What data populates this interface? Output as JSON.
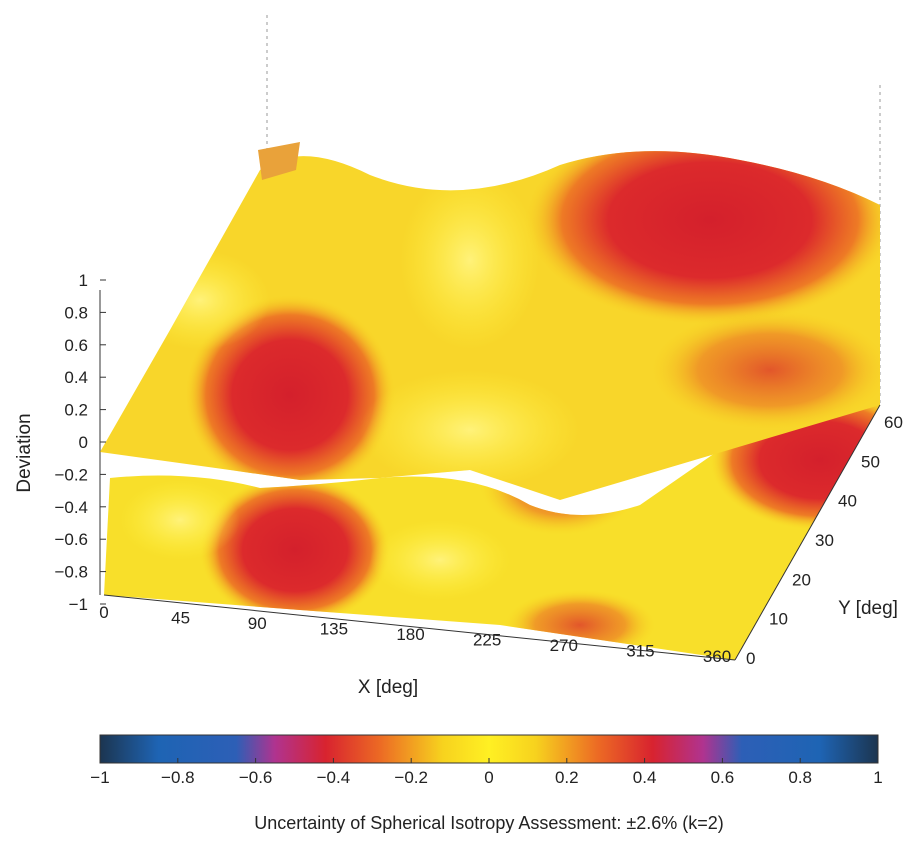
{
  "chart_data": {
    "type": "surface",
    "title": "",
    "xlabel": "X [deg]",
    "ylabel": "Y [deg]",
    "zlabel": "Deviation",
    "xlim": [
      0,
      360
    ],
    "ylim": [
      0,
      60
    ],
    "zlim": [
      -1,
      1
    ],
    "x_ticks": [
      "0",
      "45",
      "90",
      "135",
      "180",
      "225",
      "270",
      "315",
      "360"
    ],
    "y_ticks": [
      "0",
      "10",
      "20",
      "30",
      "40",
      "50",
      "60"
    ],
    "z_ticks": [
      "-1",
      "-0.8",
      "-0.6",
      "-0.4",
      "-0.2",
      "0",
      "0.2",
      "0.4",
      "0.6",
      "0.8",
      "1"
    ],
    "surface_note": "Two overlapping surface sheets, values shown by color: red lobes (|deviation| about 0.4) near X=90-135 at low Y and X=270-360 at high Y; mostly yellow (near 0) elsewhere.",
    "colorbar": {
      "ticks": [
        "-1",
        "-0.8",
        "-0.6",
        "-0.4",
        "-0.2",
        "0",
        "0.2",
        "0.4",
        "0.6",
        "0.8",
        "1"
      ],
      "range": [
        -1,
        1
      ],
      "stops": [
        {
          "v": -1.0,
          "color": "#1c3550"
        },
        {
          "v": -0.85,
          "color": "#1e64b4"
        },
        {
          "v": -0.65,
          "color": "#2d5fb6"
        },
        {
          "v": -0.55,
          "color": "#b0338f"
        },
        {
          "v": -0.42,
          "color": "#d8232f"
        },
        {
          "v": -0.28,
          "color": "#ec6a24"
        },
        {
          "v": -0.12,
          "color": "#f7d21e"
        },
        {
          "v": 0.0,
          "color": "#fff023"
        },
        {
          "v": 0.12,
          "color": "#f7d21e"
        },
        {
          "v": 0.28,
          "color": "#ec6a24"
        },
        {
          "v": 0.42,
          "color": "#d8232f"
        },
        {
          "v": 0.55,
          "color": "#b0338f"
        },
        {
          "v": 0.65,
          "color": "#2d5fb6"
        },
        {
          "v": 0.85,
          "color": "#1e64b4"
        },
        {
          "v": 1.0,
          "color": "#1c3550"
        }
      ]
    },
    "caption": "Uncertainty of Spherical Isotropy Assessment: ±2.6% (k=2)"
  }
}
